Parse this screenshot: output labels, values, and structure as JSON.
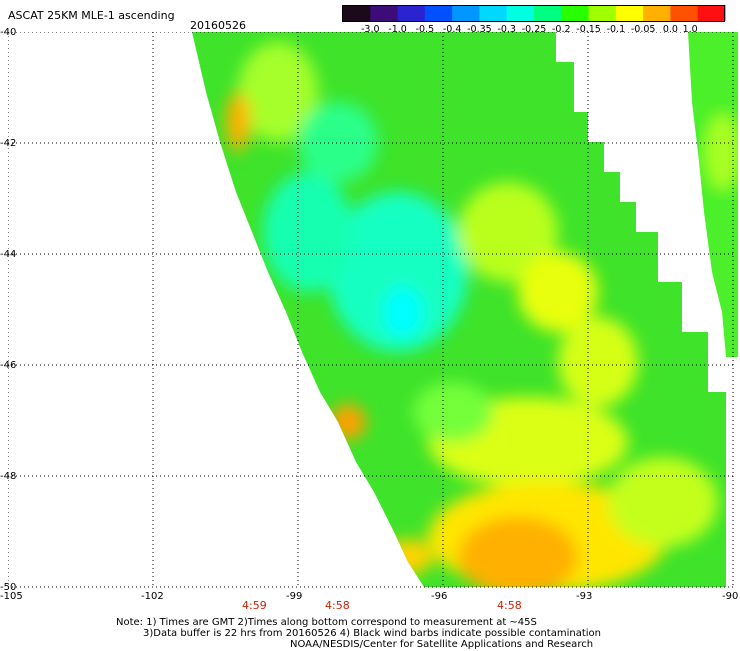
{
  "header": {
    "title": "ASCAT 25KM MLE-1 ascending",
    "date": "20160526"
  },
  "colorbar": {
    "tick_labels": [
      "-3.0",
      "-1.0",
      "-0.5",
      "-0.4",
      "-0.35",
      "-0.3",
      "-0.25",
      "-0.2",
      "-0.15",
      "-0.1",
      "-0.05",
      "0.0",
      "1.0"
    ],
    "colors": [
      "#1a0a1a",
      "#3c0c78",
      "#2a24d0",
      "#0050ff",
      "#0096ff",
      "#00d8ff",
      "#00ffe0",
      "#00ff80",
      "#28ff00",
      "#a0ff00",
      "#ffff00",
      "#ffb000",
      "#ff5000",
      "#ff1010"
    ]
  },
  "map": {
    "lat_labels": [
      "-40",
      "-42",
      "-44",
      "-46",
      "-48",
      "-50"
    ],
    "lon_labels": [
      "-105",
      "-102",
      "-99",
      "-96",
      "-93",
      "-90"
    ],
    "pass_times": [
      "4:59",
      "4:58",
      "4:58"
    ],
    "lat_range": [
      -50,
      -40
    ],
    "lon_range": [
      -105,
      -90
    ],
    "grid": "dotted"
  },
  "notes": {
    "line1": "Note: 1) Times are GMT 2)Times along bottom correspond to measurement at ~45S",
    "line2": "3)Data buffer is 22 hrs from 20160526 4) Black wind barbs indicate possible contamination",
    "line3": "NOAA/NESDIS/Center for Satellite Applications and Research"
  }
}
